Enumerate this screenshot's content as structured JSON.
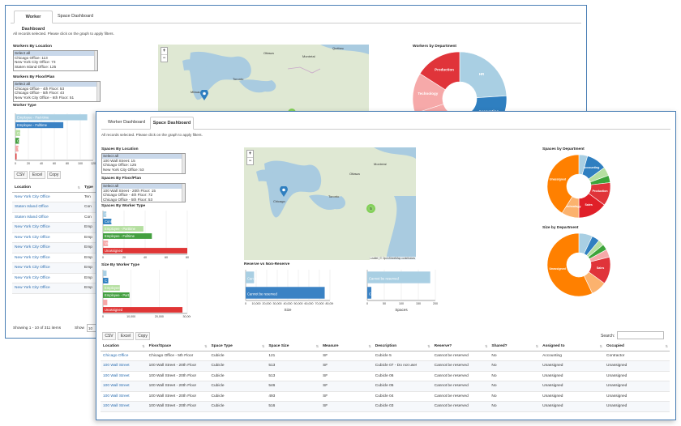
{
  "worker": {
    "tabs": [
      "Worker Dashboard",
      "Space Dashboard"
    ],
    "note": "All records selected. Please click on the graph to apply filters.",
    "by_location": {
      "label": "Workers By Location",
      "options": [
        "Select all",
        "Chicago Office: 113",
        "New York City Office: 73",
        "Staten Island Office: 125"
      ]
    },
    "by_floor": {
      "label": "Workers By Floor/Plan",
      "options": [
        "Select all",
        "Chicago Office - 4th Floor: 53",
        "Chicago Office - 5th Floor: 43",
        "New York City Office - 6th Floor: 51"
      ]
    },
    "worker_type": {
      "label": "Worker Type",
      "bars": [
        {
          "label": "Employee - Part-time",
          "value": 120,
          "color": "#a9cfe3"
        },
        {
          "label": "Employee - Fulltime",
          "value": 80,
          "color": "#3a82c4"
        },
        {
          "label": "Cont",
          "value": 8,
          "color": "#b5dfa0"
        },
        {
          "label": "Con",
          "value": 6,
          "color": "#44a040"
        },
        {
          "label": "Temp",
          "value": 5,
          "color": "#f6a9a9"
        },
        {
          "label": "",
          "value": 2,
          "color": "#e03535"
        }
      ],
      "ticks": [
        "0",
        "20",
        "40",
        "60",
        "80",
        "100",
        "120"
      ]
    },
    "buttons": [
      "CSV",
      "Excel",
      "Copy"
    ],
    "table": {
      "headers": [
        "Location",
        "Type"
      ],
      "rows": [
        [
          "New York City Office",
          "Ten"
        ],
        [
          "Staten Island Office",
          "Con"
        ],
        [
          "Staten Island Office",
          "Con"
        ],
        [
          "New York City Office",
          "Emp"
        ],
        [
          "New York City Office",
          "Emp"
        ],
        [
          "New York City Office",
          "Emp"
        ],
        [
          "New York City Office",
          "Emp"
        ],
        [
          "New York City Office",
          "Emp"
        ],
        [
          "New York City Office",
          "Emp"
        ],
        [
          "New York City Office",
          "Emp"
        ]
      ]
    },
    "showing": "Showing 1 - 10 of 311 items",
    "show": "Show",
    "show_value": "10",
    "dept_title": "Workers by Department",
    "dept": {
      "values": [
        24,
        16,
        12,
        10,
        8,
        14,
        16
      ],
      "labels": [
        "HR",
        "Accounting",
        "",
        "",
        "",
        "Technology",
        "Production"
      ],
      "colors": [
        "#a9cfe3",
        "#2f7fc0",
        "#b5dfa0",
        "#3ca43a",
        "#f6a9a9",
        "#f6a9a9",
        "#e0343a"
      ]
    },
    "map_markers": [
      {
        "label": "",
        "type": "pin"
      },
      {
        "label": "2",
        "type": "cluster"
      }
    ],
    "map_labels": [
      "Toronto",
      "Milwaukee",
      "Ottawa",
      "Montréal",
      "Québec"
    ]
  },
  "space": {
    "tabs": [
      "Worker Dashboard",
      "Space Dashboard"
    ],
    "note": "All records selected. Please click on the graph to apply filters.",
    "by_location": {
      "label": "Spaces By Location",
      "options": [
        "Select all",
        "100 Wall Street: 15",
        "Chicago Office: 125",
        "New York City Office: 53"
      ]
    },
    "by_floor": {
      "label": "Spaces By Floor/Plan",
      "options": [
        "Select all",
        "100 Wall Street - 20th Floor: 15",
        "Chicago Office - 4th Floor: 72",
        "Chicago Office - 5th Floor: 53"
      ]
    },
    "by_worker_type": {
      "label": "Spaces By Worker Type",
      "bars": [
        {
          "label": "Conte",
          "value": 4,
          "color": "#a9cfe3"
        },
        {
          "label": "Contractor",
          "value": 10,
          "color": "#2f7fc0"
        },
        {
          "label": "Employee - Parttime",
          "value": 48,
          "color": "#b5dfa0"
        },
        {
          "label": "Employee - Fulltime",
          "value": 58,
          "color": "#44a040"
        },
        {
          "label": "Vac",
          "value": 6,
          "color": "#f6a9a9"
        },
        {
          "label": "Unassigned",
          "value": 100,
          "color": "#e03535"
        }
      ],
      "ticks": [
        "0",
        "20",
        "40",
        "60",
        "80"
      ]
    },
    "size_by_worker_type": {
      "label": "Size By Worker Type",
      "bars": [
        {
          "label": "",
          "value": 1500,
          "color": "#a9cfe3"
        },
        {
          "label": "C",
          "value": 2200,
          "color": "#2f7fc0"
        },
        {
          "label": "Employee",
          "value": 7000,
          "color": "#b5dfa0"
        },
        {
          "label": "Employee - Part",
          "value": 11000,
          "color": "#44a040"
        },
        {
          "label": "",
          "value": 1800,
          "color": "#f6a9a9"
        },
        {
          "label": "Unassigned",
          "value": 33000,
          "color": "#e03535"
        }
      ],
      "ticks": [
        "0",
        "10,000",
        "20,000",
        "30,000"
      ]
    },
    "reserve_title": "Reserve vs Non-Reserve",
    "reserve_size": {
      "bars": [
        {
          "label": "Can be",
          "value": 8000,
          "color": "#a9cfe3"
        },
        {
          "label": "Cannot be reserved",
          "value": 75000,
          "color": "#3a82c4"
        }
      ],
      "ticks": [
        "0",
        "10,000",
        "20,000",
        "30,000",
        "40,000",
        "50,000",
        "60,000",
        "70,000",
        "80,000"
      ],
      "xlabel": "Size"
    },
    "reserve_spaces": {
      "bars": [
        {
          "label": "Cannot be reserved",
          "value": 185,
          "color": "#a9cfe3"
        },
        {
          "label": "Ca",
          "value": 12,
          "color": "#3a82c4"
        }
      ],
      "ticks": [
        "0",
        "50",
        "100",
        "150",
        "200"
      ],
      "xlabel": "Spaces"
    },
    "dept_title": "Spaces by Department",
    "dept": {
      "values": [
        6,
        14,
        6,
        5,
        16,
        20,
        12,
        55
      ],
      "labels": [
        "",
        "Accounting",
        "",
        "",
        "Production",
        "Sales",
        "Technology",
        "Unassigned"
      ],
      "colors": [
        "#a9cfe3",
        "#2f7fc0",
        "#b5dfa0",
        "#3ca43a",
        "#e0343a",
        "#e01f28",
        "#fbb26e",
        "#ff8000"
      ]
    },
    "size_dept_title": "Size by Department",
    "size_dept": {
      "values": [
        7,
        4,
        3,
        3,
        4,
        14,
        8,
        57
      ],
      "labels": [
        "",
        "",
        "",
        "",
        "",
        "Sales",
        "",
        "Unassigned"
      ],
      "colors": [
        "#a9cfe3",
        "#2f7fc0",
        "#b5dfa0",
        "#3ca43a",
        "#f6a9a9",
        "#e0343a",
        "#fbb26e",
        "#ff8000"
      ]
    },
    "buttons": [
      "CSV",
      "Excel",
      "Copy"
    ],
    "search_label": "Search:",
    "table": {
      "headers": [
        "Location",
        "Floor/Space",
        "Space Type",
        "Space Size",
        "Measure",
        "Description",
        "Reserve?",
        "Shared?",
        "Assigned to",
        "Occupied"
      ],
      "rows": [
        [
          "Chicago Office",
          "Chicago Office - 5th Floor",
          "Cubicle",
          "121",
          "SF",
          "Cubicle 5",
          "Cannot be reserved",
          "No",
          "Accounting",
          "Contractor"
        ],
        [
          "100 Wall Street",
          "100 Wall Street - 20th Floor",
          "Cubicle",
          "513",
          "SF",
          "Cubicle 07 - Do not use!",
          "Cannot be reserved",
          "No",
          "Unassigned",
          "Unassigned"
        ],
        [
          "100 Wall Street",
          "100 Wall Street - 20th Floor",
          "Cubicle",
          "513",
          "SF",
          "Cubicle 06",
          "Cannot be reserved",
          "No",
          "Unassigned",
          "Unassigned"
        ],
        [
          "100 Wall Street",
          "100 Wall Street - 20th Floor",
          "Cubicle",
          "546",
          "SF",
          "Cubicle 05",
          "Cannot be reserved",
          "No",
          "Unassigned",
          "Unassigned"
        ],
        [
          "100 Wall Street",
          "100 Wall Street - 20th Floor",
          "Cubicle",
          "493",
          "SF",
          "Cubicle 04",
          "Cannot be reserved",
          "No",
          "Unassigned",
          "Unassigned"
        ],
        [
          "100 Wall Street",
          "100 Wall Street - 20th Floor",
          "Cubicle",
          "516",
          "SF",
          "Cubicle 03",
          "Cannot be reserved",
          "No",
          "Unassigned",
          "Unassigned"
        ]
      ]
    },
    "map_markers": [
      {
        "label": "",
        "type": "pin"
      },
      {
        "label": "5",
        "type": "cluster"
      }
    ],
    "map_labels": [
      "Toronto",
      "Ottawa",
      "Montréal",
      "Chicago"
    ],
    "map_attrib": "Leaflet | © OpenStreetMap contributors"
  }
}
